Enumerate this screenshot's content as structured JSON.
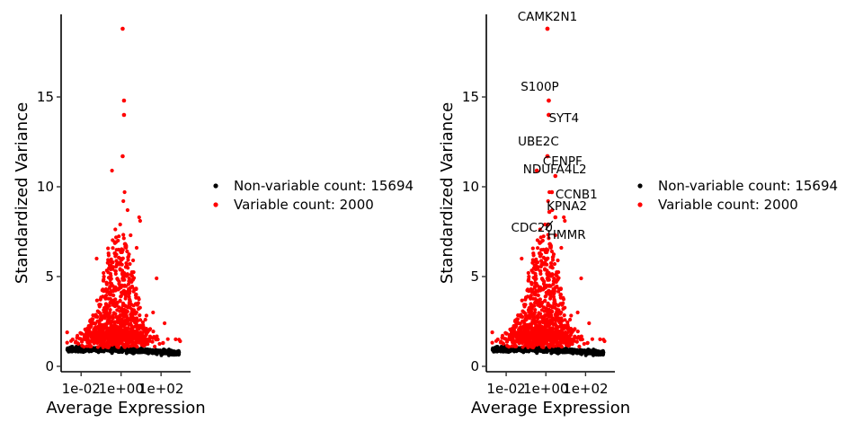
{
  "colors": {
    "non_variable": "#000000",
    "variable": "#ff0000",
    "axis": "#000000"
  },
  "legend": [
    {
      "label": "Non-variable count: 15694",
      "color": "#000000"
    },
    {
      "label": "Variable count: 2000",
      "color": "#ff0000"
    }
  ],
  "chart_data": [
    {
      "type": "scatter",
      "xlabel": "Average Expression",
      "ylabel": "Standardized Variance",
      "x_scale": "log10",
      "xlim": [
        0.001,
        3000
      ],
      "ylim": [
        -0.3,
        19.6
      ],
      "x_ticks": [
        {
          "value": 0.01,
          "label": "1e-02"
        },
        {
          "value": 1,
          "label": "1e+00"
        },
        {
          "value": 100,
          "label": "1e+02"
        }
      ],
      "y_ticks": [
        {
          "value": 0,
          "label": "0"
        },
        {
          "value": 5,
          "label": "5"
        },
        {
          "value": 10,
          "label": "10"
        },
        {
          "value": 15,
          "label": "15"
        }
      ],
      "grid": false,
      "legend_position": "right",
      "series": [
        {
          "name": "Non-variable count: 15694",
          "color": "#000000",
          "points": []
        },
        {
          "name": "Variable count: 2000",
          "color": "#ff0000",
          "points": []
        }
      ],
      "labeled_points": []
    },
    {
      "type": "scatter",
      "xlabel": "Average Expression",
      "ylabel": "Standardized Variance",
      "x_scale": "log10",
      "xlim": [
        0.001,
        3000
      ],
      "ylim": [
        -0.3,
        19.6
      ],
      "x_ticks": [
        {
          "value": 0.01,
          "label": "1e-02"
        },
        {
          "value": 1,
          "label": "1e+00"
        },
        {
          "value": 100,
          "label": "1e+02"
        }
      ],
      "y_ticks": [
        {
          "value": 0,
          "label": "0"
        },
        {
          "value": 5,
          "label": "5"
        },
        {
          "value": 10,
          "label": "10"
        },
        {
          "value": 15,
          "label": "15"
        }
      ],
      "grid": false,
      "legend_position": "right",
      "series": [
        {
          "name": "Non-variable count: 15694",
          "color": "#000000",
          "points": []
        },
        {
          "name": "Variable count: 2000",
          "color": "#ff0000",
          "points": []
        }
      ],
      "labeled_points": [
        {
          "label": "CAMK2N1",
          "x": 1.2,
          "y": 18.8
        },
        {
          "label": "S100P",
          "x": 1.4,
          "y": 14.8
        },
        {
          "label": "SYT4",
          "x": 1.4,
          "y": 14.0
        },
        {
          "label": "UBE2C",
          "x": 1.2,
          "y": 11.7
        },
        {
          "label": "NDUFA4L2",
          "x": 0.35,
          "y": 10.9
        },
        {
          "label": "CENPF",
          "x": 3.0,
          "y": 10.6
        },
        {
          "label": "CCNB1",
          "x": 2.0,
          "y": 9.7
        },
        {
          "label": "KPNA2",
          "x": 1.5,
          "y": 8.6
        },
        {
          "label": "CDC20",
          "x": 1.3,
          "y": 7.9
        },
        {
          "label": "HMMR",
          "x": 3.0,
          "y": 8.3
        }
      ]
    }
  ]
}
